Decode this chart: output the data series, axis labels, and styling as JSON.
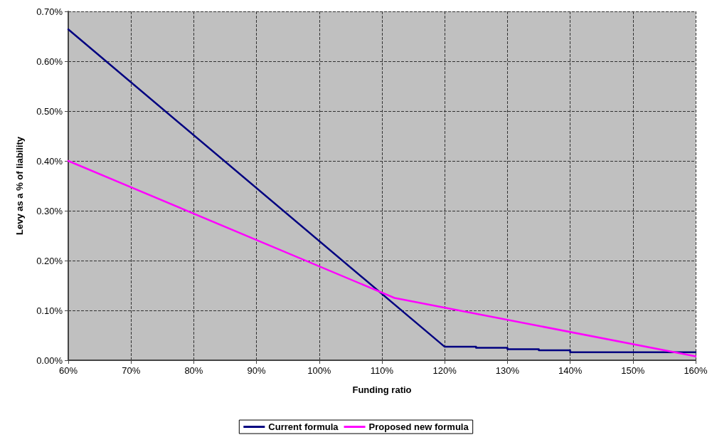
{
  "chart_data": {
    "type": "line",
    "xlabel": "Funding ratio",
    "ylabel": "Levy as a % of liability",
    "xlim": [
      60,
      160
    ],
    "ylim": [
      0,
      0.7
    ],
    "xticks": [
      {
        "value": 60,
        "label": "60%"
      },
      {
        "value": 70,
        "label": "70%"
      },
      {
        "value": 80,
        "label": "80%"
      },
      {
        "value": 90,
        "label": "90%"
      },
      {
        "value": 100,
        "label": "100%"
      },
      {
        "value": 110,
        "label": "110%"
      },
      {
        "value": 120,
        "label": "120%"
      },
      {
        "value": 130,
        "label": "130%"
      },
      {
        "value": 140,
        "label": "140%"
      },
      {
        "value": 150,
        "label": "150%"
      },
      {
        "value": 160,
        "label": "160%"
      }
    ],
    "yticks": [
      {
        "value": 0,
        "label": "0.00%"
      },
      {
        "value": 0.1,
        "label": "0.10%"
      },
      {
        "value": 0.2,
        "label": "0.20%"
      },
      {
        "value": 0.3,
        "label": "0.30%"
      },
      {
        "value": 0.4,
        "label": "0.40%"
      },
      {
        "value": 0.5,
        "label": "0.50%"
      },
      {
        "value": 0.6,
        "label": "0.60%"
      },
      {
        "value": 0.7,
        "label": "0.70%"
      }
    ],
    "series": [
      {
        "name": "Current formula",
        "color": "#000080",
        "x": [
          60,
          120,
          125,
          125,
          130,
          130,
          135,
          135,
          140,
          140,
          160
        ],
        "values": [
          0.664,
          0.027,
          0.027,
          0.025,
          0.025,
          0.022,
          0.022,
          0.02,
          0.02,
          0.016,
          0.016
        ]
      },
      {
        "name": "Proposed new formula",
        "color": "#ff00ff",
        "x": [
          60,
          112,
          160
        ],
        "values": [
          0.4,
          0.125,
          0.008
        ]
      }
    ],
    "grid": true,
    "legend": "bottom",
    "marker": "none",
    "line_style": "solid"
  }
}
